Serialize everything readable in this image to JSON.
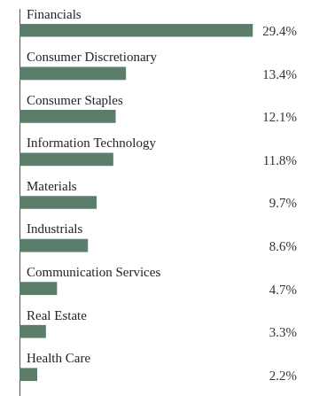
{
  "chart_data": {
    "type": "bar",
    "orientation": "horizontal",
    "categories": [
      "Financials",
      "Consumer Discretionary",
      "Consumer Staples",
      "Information Technology",
      "Materials",
      "Industrials",
      "Communication Services",
      "Real Estate",
      "Health Care"
    ],
    "values": [
      29.4,
      13.4,
      12.1,
      11.8,
      9.7,
      8.6,
      4.7,
      3.3,
      2.2
    ],
    "value_labels": [
      "29.4%",
      "13.4%",
      "12.1%",
      "11.8%",
      "9.7%",
      "8.6%",
      "4.7%",
      "3.3%",
      "2.2%"
    ],
    "color": "#5a7e69",
    "xlim": [
      0,
      35
    ],
    "grid": false,
    "data_labels": true,
    "tick_labels": false
  }
}
